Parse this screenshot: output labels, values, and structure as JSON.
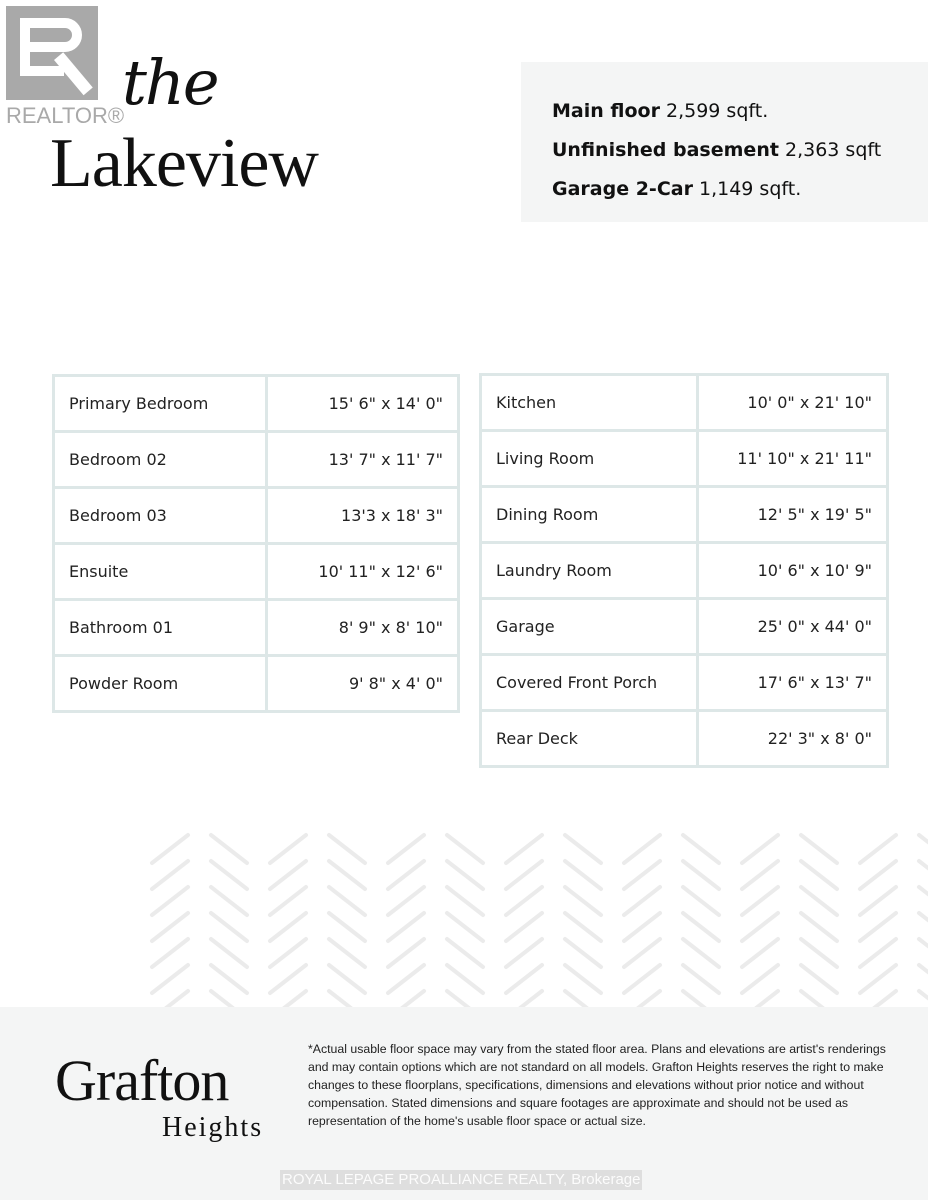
{
  "watermark_logo": {
    "text": "REALTOR®",
    "color": "#a9a9a9"
  },
  "header": {
    "title_prefix": "the",
    "title": "Lakeview"
  },
  "specs": [
    {
      "label": "Main floor",
      "value": "2,599 sqft."
    },
    {
      "label": "Unfinished basement",
      "value": "2,363 sqft"
    },
    {
      "label": "Garage 2-Car",
      "value": "1,149 sqft."
    }
  ],
  "rooms_left": [
    {
      "name": "Primary Bedroom",
      "dim": "15' 6\" x 14' 0\""
    },
    {
      "name": "Bedroom 02",
      "dim": "13' 7\" x 11' 7\""
    },
    {
      "name": "Bedroom 03",
      "dim": "13'3 x 18' 3\""
    },
    {
      "name": "Ensuite",
      "dim": "10' 11\" x 12' 6\""
    },
    {
      "name": "Bathroom 01",
      "dim": "8' 9\" x 8' 10\""
    },
    {
      "name": "Powder Room",
      "dim": "9' 8\" x 4' 0\""
    }
  ],
  "rooms_right": [
    {
      "name": "Kitchen",
      "dim": "10' 0\" x 21' 10\""
    },
    {
      "name": "Living Room",
      "dim": "11' 10\" x 21' 11\""
    },
    {
      "name": "Dining Room",
      "dim": "12' 5\" x 19' 5\""
    },
    {
      "name": "Laundry Room",
      "dim": "10' 6\" x 10' 9\""
    },
    {
      "name": "Garage",
      "dim": "25' 0\" x 44' 0\""
    },
    {
      "name": "Covered Front Porch",
      "dim": "17' 6\" x 13' 7\""
    },
    {
      "name": "Rear Deck",
      "dim": "22' 3\" x 8' 0\""
    }
  ],
  "footer": {
    "brand_line1": "Grafton",
    "brand_line2": "Heights",
    "disclaimer": "*Actual usable floor space may vary from the stated floor area. Plans and elevations are artist's renderings and may contain options which are not standard on all models. Grafton Heights reserves the right to make changes to these floorplans, specifications, dimensions and elevations without prior notice and without compensation. Stated dimensions and square footages are approximate and should not be used as representation of the home's usable floor space or actual size.",
    "brokerage_watermark": "ROYAL LEPAGE PROALLIANCE REALTY, Brokerage"
  },
  "colors": {
    "table_border": "#dde7e7",
    "panel_bg": "#f4f5f5",
    "pattern": "#ebebeb"
  }
}
